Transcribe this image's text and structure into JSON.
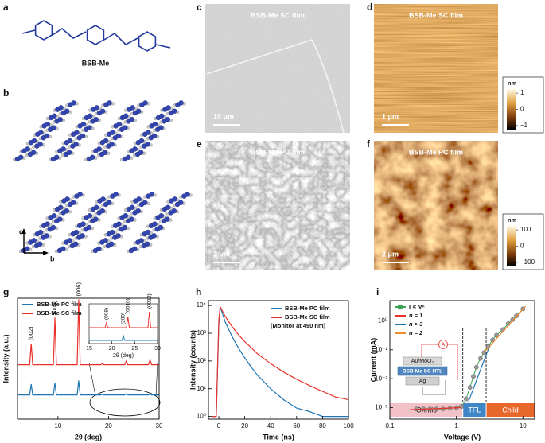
{
  "panel_labels": [
    "a",
    "b",
    "c",
    "d",
    "e",
    "f",
    "g",
    "h",
    "i"
  ],
  "molecule_name": "BSB-Me",
  "crystal_axes": [
    "c",
    "b"
  ],
  "images": [
    {
      "title": "BSB-Me SC film",
      "scale_bar": "10 μm"
    },
    {
      "title": "BSB-Me SC film",
      "scale_bar": "1 μm",
      "colorbar": {
        "unit": "nm",
        "clim": [
          -1.25,
          1.25
        ],
        "ticks": [
          1,
          0,
          {
            "value": -1,
            "label": "−1"
          }
        ]
      }
    },
    {
      "title": "BSB-Me PC film",
      "scale_bar": "2 μm"
    },
    {
      "title": "BSB-Me PC film",
      "scale_bar": "2 μm",
      "colorbar": {
        "unit": "nm",
        "clim": [
          -125,
          125
        ],
        "ticks": [
          100,
          0,
          {
            "value": -100,
            "label": "−100"
          }
        ]
      }
    }
  ],
  "chart_data": [
    {
      "type": "line",
      "xlabel": "2θ (deg)",
      "ylabel": "Intensity (a.u.)",
      "xlim": [
        2,
        30
      ],
      "xticks": [
        10,
        20,
        30
      ],
      "ylim": [
        0,
        10
      ],
      "x": [
        2,
        4.4,
        4.7,
        5.0,
        9.1,
        9.4,
        9.7,
        13.8,
        14.1,
        14.4,
        18.5,
        18.8,
        19.1,
        23.2,
        23.5,
        23.8,
        27.9,
        28.2,
        28.5,
        30
      ],
      "series": [
        {
          "name": "BSB-Me PC film",
          "color": "#1f77b4",
          "values": [
            2,
            2,
            2.9,
            2,
            2,
            3,
            2,
            2,
            3.2,
            2,
            2,
            2.05,
            2,
            2,
            2.1,
            2,
            2,
            2.1,
            2,
            2
          ]
        },
        {
          "name": "BSB-Me SC film",
          "color": "#e8312a",
          "values": [
            4.5,
            4.5,
            6.25,
            4.5,
            4.5,
            8.4,
            4.5,
            4.5,
            9.9,
            4.5,
            4.5,
            4.6,
            4.5,
            4.5,
            4.8,
            4.5,
            4.5,
            4.9,
            4.5,
            4.5
          ]
        }
      ],
      "peaks": [
        {
          "label": "(002)",
          "x": 4.7
        },
        {
          "label": "(004)",
          "x": 9.4
        },
        {
          "label": "(006)",
          "x": 14.1
        }
      ],
      "inset": {
        "xlabel": "2θ (deg)",
        "xlim": [
          15,
          30
        ],
        "xticks": [
          15,
          20,
          25,
          30
        ],
        "ylim": [
          0,
          11
        ],
        "x": [
          15,
          18.5,
          18.8,
          19.1,
          22.2,
          22.5,
          22.8,
          23.2,
          23.5,
          23.8,
          27.9,
          28.2,
          28.5,
          30
        ],
        "series": [
          {
            "color": "#1f77b4",
            "values": [
              1,
              1,
              1,
              1,
              1,
              2.5,
              1,
              1,
              1,
              1,
              1,
              1,
              1,
              1
            ]
          },
          {
            "color": "#e8312a",
            "values": [
              5,
              5,
              6.5,
              5,
              5,
              5,
              5,
              5,
              8.5,
              5,
              5,
              10,
              5,
              5
            ]
          }
        ],
        "peaks": [
          {
            "label": "(008)",
            "x": 18.8
          },
          {
            "label": "(0010)",
            "x": 23.5
          },
          {
            "label": "(0012)",
            "x": 28.2
          },
          {
            "label": "(200)",
            "x": 22.5
          }
        ]
      }
    },
    {
      "type": "line",
      "xlabel": "Time (ns)",
      "ylabel": "Intensity (counts)",
      "yscale": "log",
      "xlim": [
        -8,
        100
      ],
      "xticks": [
        0,
        20,
        40,
        60,
        80,
        100
      ],
      "ylim": [
        0.8,
        15000
      ],
      "yticks": [
        {
          "value": 1,
          "label": "10⁰"
        },
        {
          "value": 10,
          "label": "10¹"
        },
        {
          "value": 100,
          "label": "10²"
        },
        {
          "value": 1000,
          "label": "10³"
        },
        {
          "value": 10000,
          "label": "10⁴"
        }
      ],
      "note": "(Monitor at 490 nm)",
      "x": [
        -5,
        -2,
        0,
        1,
        5,
        10,
        15,
        20,
        25,
        30,
        40,
        50,
        60,
        70,
        80,
        90,
        100
      ],
      "series": [
        {
          "name": "BSB-Me PC film",
          "color": "#1f77b4",
          "values": [
            1,
            1,
            2000,
            9000,
            2500,
            800,
            300,
            130,
            60,
            30,
            10,
            4,
            2,
            1.5,
            1,
            1,
            1
          ]
        },
        {
          "name": "BSB-Me SC film",
          "color": "#e8312a",
          "values": [
            1,
            1,
            3000,
            9000,
            4000,
            1800,
            900,
            500,
            300,
            180,
            80,
            40,
            22,
            13,
            8,
            5,
            4
          ]
        }
      ]
    },
    {
      "type": "line",
      "xlabel": "Voltage (V)",
      "ylabel": "Current (mA)",
      "xscale": "log",
      "yscale": "log",
      "xlim": [
        0.1,
        15
      ],
      "xticks": [
        0.1,
        1,
        10
      ],
      "ylim": [
        0.0004,
        5
      ],
      "yticks": [
        {
          "value": 0.001,
          "label": "10⁻³"
        },
        {
          "value": 0.01,
          "label": "10⁻²"
        },
        {
          "value": 0.1,
          "label": "10⁻¹"
        },
        {
          "value": 1,
          "label": "10⁰"
        }
      ],
      "series": [
        {
          "name": "I ∝ Vⁿ",
          "color": "#3aa655",
          "marker": true,
          "x": [
            0.25,
            0.32,
            0.4,
            0.5,
            0.63,
            0.8,
            1.0,
            1.2,
            1.4,
            1.6,
            1.8,
            2.0,
            2.3,
            2.6,
            3.0,
            3.5,
            4,
            5,
            6,
            7,
            8,
            10
          ],
          "values": [
            0.0009,
            0.0009,
            0.0009,
            0.0009,
            0.0009,
            0.00095,
            0.001,
            0.0011,
            0.002,
            0.005,
            0.012,
            0.025,
            0.05,
            0.08,
            0.13,
            0.22,
            0.32,
            0.5,
            0.8,
            1.1,
            1.5,
            2.6
          ]
        },
        {
          "name": "n = 1",
          "color": "#e8312a",
          "x": [
            0.2,
            1.15
          ],
          "values": [
            0.00085,
            0.001
          ]
        },
        {
          "name": "n > 3",
          "color": "#1f77b4",
          "x": [
            1.5,
            3.2
          ],
          "values": [
            0.0015,
            0.15
          ]
        },
        {
          "name": "n = 2",
          "color": "#f08a2c",
          "x": [
            2.6,
            11
          ],
          "values": [
            0.08,
            3.2
          ]
        }
      ],
      "regions": [
        {
          "label": "Ohmic",
          "x": [
            0.1,
            1.25
          ],
          "color": "#f2c2c8"
        },
        {
          "label": "TFL",
          "x": [
            1.25,
            2.8
          ],
          "color": "#3f86c6"
        },
        {
          "label": "Child",
          "x": [
            2.8,
            15
          ],
          "color": "#e8672b"
        }
      ],
      "device": {
        "layers": [
          "Au/MoO₃",
          "BSB-Me SC HTL",
          "Ag"
        ],
        "meter": "A"
      }
    }
  ]
}
